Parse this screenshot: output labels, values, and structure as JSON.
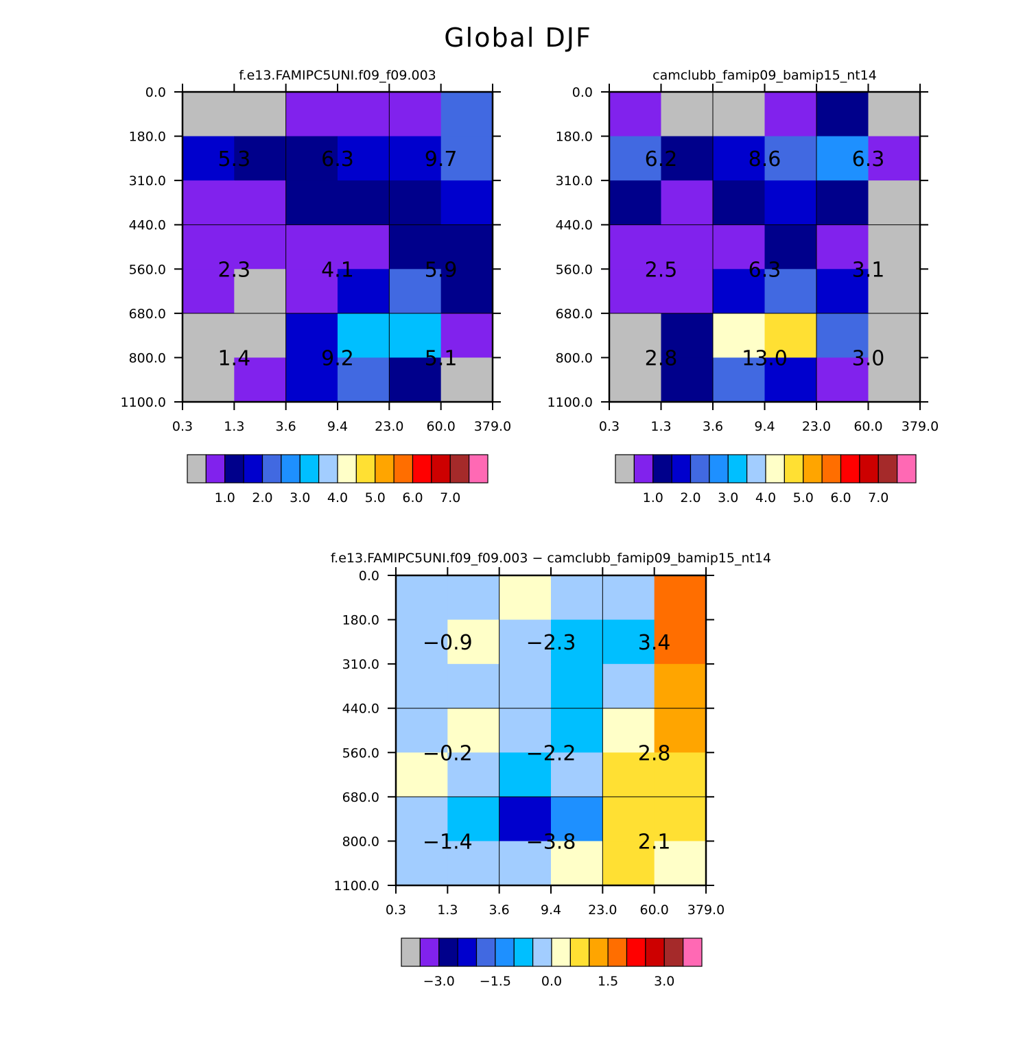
{
  "title": "Global DJF",
  "x_tick_labels": [
    "0.3",
    "1.3",
    "3.6",
    "9.4",
    "23.0",
    "60.0",
    "379.0"
  ],
  "y_tick_labels": [
    "0.0",
    "180.0",
    "310.0",
    "440.0",
    "560.0",
    "680.0",
    "800.0",
    "1100.0"
  ],
  "colors": {
    "gray": "#bebebe",
    "purple": "#8122ed",
    "navy": "#00008b",
    "blue": "#0000cd",
    "royal": "#4169e1",
    "dodger": "#1e90ff",
    "cyan": "#00bfff",
    "lightblue": "#a2cdff",
    "cream": "#ffffc8",
    "gold": "#ffe033",
    "orange": "#ffa500",
    "darkorange": "#ff6e00",
    "red": "#ff0000",
    "crimson": "#cd0000",
    "brown": "#a52a2a",
    "pink": "#ff69b4"
  },
  "chart_data": [
    {
      "type": "heatmap",
      "id": "control",
      "title": "f.e13.FAMIPC5UNI.f09_f09.003",
      "xlabel": "",
      "ylabel": "",
      "cells": [
        [
          "gray",
          "gray",
          "purple",
          "purple",
          "purple",
          "royal"
        ],
        [
          "blue",
          "navy",
          "navy",
          "blue",
          "blue",
          "royal"
        ],
        [
          "purple",
          "purple",
          "navy",
          "navy",
          "navy",
          "blue"
        ],
        [
          "purple",
          "purple",
          "purple",
          "purple",
          "navy",
          "navy"
        ],
        [
          "purple",
          "gray",
          "purple",
          "blue",
          "royal",
          "navy"
        ],
        [
          "gray",
          "gray",
          "blue",
          "cyan",
          "cyan",
          "purple"
        ],
        [
          "gray",
          "purple",
          "blue",
          "royal",
          "navy",
          "gray"
        ]
      ],
      "box_values": [
        [
          "5.3",
          "6.3",
          "9.7"
        ],
        [
          "2.3",
          "4.1",
          "5.9"
        ],
        [
          "1.4",
          "9.2",
          "5.1"
        ]
      ],
      "colorbar": {
        "colors": [
          "gray",
          "purple",
          "navy",
          "blue",
          "royal",
          "dodger",
          "cyan",
          "lightblue",
          "cream",
          "gold",
          "orange",
          "darkorange",
          "red",
          "crimson",
          "brown",
          "pink"
        ],
        "labels": [
          "1.0",
          "2.0",
          "3.0",
          "4.0",
          "5.0",
          "6.0",
          "7.0"
        ],
        "levels": [
          1.0,
          2.0,
          3.0,
          4.0,
          5.0,
          6.0,
          7.0
        ]
      }
    },
    {
      "type": "heatmap",
      "id": "test",
      "title": "camclubb_famip09_bamip15_nt14",
      "xlabel": "",
      "ylabel": "",
      "cells": [
        [
          "purple",
          "gray",
          "gray",
          "purple",
          "navy",
          "gray"
        ],
        [
          "royal",
          "navy",
          "blue",
          "royal",
          "dodger",
          "purple"
        ],
        [
          "navy",
          "purple",
          "navy",
          "blue",
          "navy",
          "gray"
        ],
        [
          "purple",
          "purple",
          "purple",
          "navy",
          "purple",
          "gray"
        ],
        [
          "purple",
          "purple",
          "blue",
          "royal",
          "blue",
          "gray"
        ],
        [
          "gray",
          "navy",
          "cream",
          "gold",
          "royal",
          "gray"
        ],
        [
          "gray",
          "navy",
          "royal",
          "blue",
          "purple",
          "gray"
        ]
      ],
      "box_values": [
        [
          "6.2",
          "8.6",
          "6.3"
        ],
        [
          "2.5",
          "6.3",
          "3.1"
        ],
        [
          "2.8",
          "13.0",
          "3.0"
        ]
      ],
      "colorbar": {
        "colors": [
          "gray",
          "purple",
          "navy",
          "blue",
          "royal",
          "dodger",
          "cyan",
          "lightblue",
          "cream",
          "gold",
          "orange",
          "darkorange",
          "red",
          "crimson",
          "brown",
          "pink"
        ],
        "labels": [
          "1.0",
          "2.0",
          "3.0",
          "4.0",
          "5.0",
          "6.0",
          "7.0"
        ],
        "levels": [
          1.0,
          2.0,
          3.0,
          4.0,
          5.0,
          6.0,
          7.0
        ]
      }
    },
    {
      "type": "heatmap",
      "id": "difference",
      "title": "f.e13.FAMIPC5UNI.f09_f09.003 − camclubb_famip09_bamip15_nt14",
      "xlabel": "",
      "ylabel": "",
      "cells": [
        [
          "lightblue",
          "lightblue",
          "cream",
          "lightblue",
          "lightblue",
          "darkorange"
        ],
        [
          "lightblue",
          "cream",
          "lightblue",
          "cyan",
          "cyan",
          "darkorange"
        ],
        [
          "lightblue",
          "lightblue",
          "lightblue",
          "cyan",
          "lightblue",
          "orange"
        ],
        [
          "lightblue",
          "cream",
          "lightblue",
          "cyan",
          "cream",
          "orange"
        ],
        [
          "cream",
          "lightblue",
          "cyan",
          "lightblue",
          "gold",
          "gold"
        ],
        [
          "lightblue",
          "cyan",
          "blue",
          "dodger",
          "gold",
          "gold"
        ],
        [
          "lightblue",
          "lightblue",
          "lightblue",
          "cream",
          "gold",
          "cream"
        ]
      ],
      "box_values": [
        [
          "−0.9",
          "−2.3",
          "3.4"
        ],
        [
          "−0.2",
          "−2.2",
          "2.8"
        ],
        [
          "−1.4",
          "−3.8",
          "2.1"
        ]
      ],
      "colorbar": {
        "colors": [
          "gray",
          "purple",
          "navy",
          "blue",
          "royal",
          "dodger",
          "cyan",
          "lightblue",
          "cream",
          "gold",
          "orange",
          "darkorange",
          "red",
          "crimson",
          "brown",
          "pink"
        ],
        "labels": [
          "−3.0",
          "−1.5",
          "0.0",
          "1.5",
          "3.0"
        ],
        "levels": [
          -3.0,
          -1.5,
          0.0,
          1.5,
          3.0
        ]
      }
    }
  ]
}
